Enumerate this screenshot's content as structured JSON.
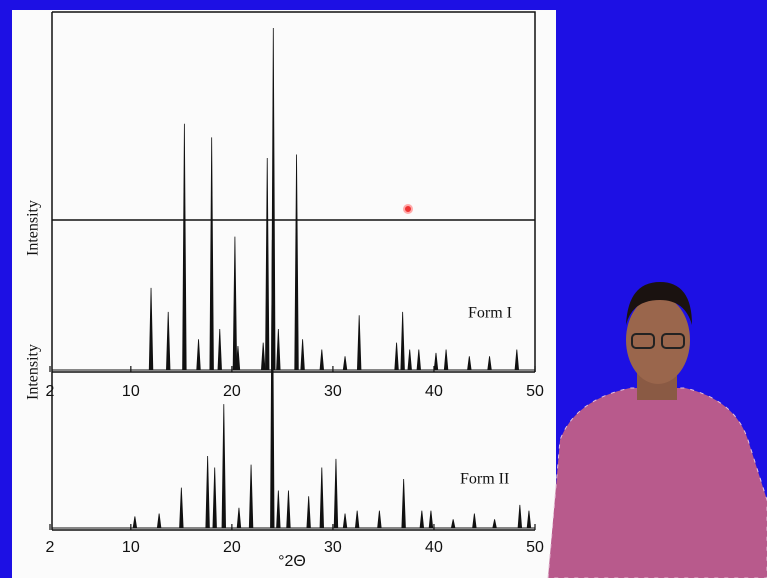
{
  "chart_data": [
    {
      "type": "line",
      "y_label": "Intensity",
      "annotation": "Form I",
      "color": "#111111",
      "x": [
        12.0,
        13.7,
        15.3,
        16.7,
        18.0,
        18.8,
        20.3,
        20.6,
        23.1,
        23.5,
        24.1,
        24.6,
        26.4,
        27.0,
        28.9,
        31.2,
        32.6,
        36.3,
        36.9,
        37.6,
        38.5,
        40.2,
        41.2,
        43.5,
        45.5,
        48.2
      ],
      "values": [
        24,
        17,
        72,
        9,
        68,
        12,
        39,
        7,
        8,
        62,
        100,
        12,
        63,
        9,
        6,
        4,
        16,
        8,
        17,
        6,
        6,
        5,
        6,
        4,
        4,
        6
      ],
      "xlim": [
        2,
        50
      ],
      "xticks": [
        2,
        10,
        20,
        30,
        40,
        50
      ],
      "ylim": [
        0,
        100
      ]
    },
    {
      "type": "line",
      "y_label": "Intensity",
      "x_label": "°2Θ",
      "annotation": "Form II",
      "color": "#111111",
      "x": [
        10.4,
        12.8,
        15.0,
        17.6,
        18.3,
        19.2,
        20.7,
        21.9,
        24.0,
        24.6,
        25.6,
        27.6,
        28.9,
        30.3,
        31.2,
        32.4,
        34.6,
        37.0,
        38.8,
        39.7,
        41.9,
        44.0,
        46.0,
        48.5,
        49.4
      ],
      "values": [
        4,
        5,
        14,
        25,
        21,
        43,
        7,
        22,
        100,
        13,
        13,
        11,
        21,
        24,
        5,
        6,
        6,
        17,
        6,
        6,
        3,
        5,
        3,
        8,
        6
      ],
      "xlim": [
        2,
        50
      ],
      "xticks": [
        2,
        10,
        20,
        30,
        40,
        50
      ],
      "ylim": [
        0,
        100
      ]
    }
  ]
}
